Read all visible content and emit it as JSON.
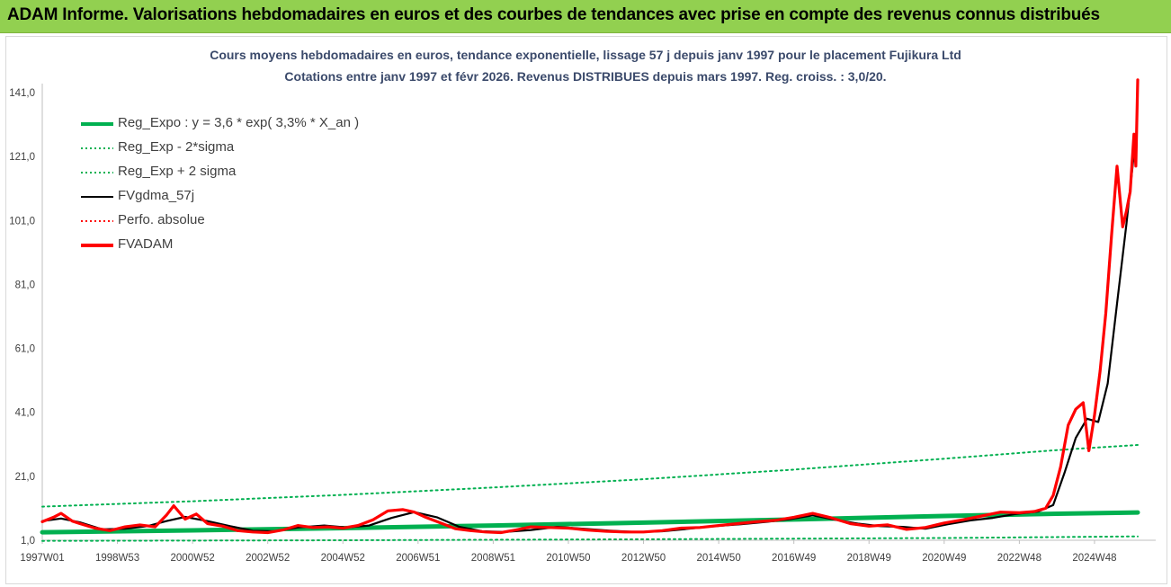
{
  "header": {
    "title": "ADAM Informe. Valorisations hebdomadaires en euros et des courbes de tendances avec prise en compte des revenus connus distribués"
  },
  "chart_data": {
    "type": "line",
    "title": "Cours moyens hebdomadaires en euros, tendance exponentielle, lissage 57 j depuis janv 1997 pour le placement Fujikura Ltd",
    "subtitle": "Cotations entre janv 1997 et févr 2026. Revenus DISTRIBUES depuis mars 1997. Reg. croiss. : 3,0/20.",
    "xlabel": "",
    "ylabel": "",
    "x_ticks": [
      "1997W01",
      "1998W53",
      "2000W52",
      "2002W52",
      "2004W52",
      "2006W51",
      "2008W51",
      "2010W50",
      "2012W50",
      "2014W50",
      "2016W49",
      "2018W49",
      "2020W49",
      "2022W48",
      "2024W48"
    ],
    "y_ticks": [
      "1,0",
      "21,0",
      "41,0",
      "61,0",
      "81,0",
      "101,0",
      "121,0",
      "141,0"
    ],
    "ylim": [
      1,
      141
    ],
    "xlim": [
      1997.0,
      2026.15
    ],
    "grid": false,
    "legend_position": "top-left",
    "colors": {
      "reg_expo": "#00b050",
      "reg_sigma": "#00b050",
      "fvgdma": "#000000",
      "perfo": "#ff0000",
      "fvadam": "#ff0000"
    },
    "legend": [
      {
        "key": "reg_expo",
        "label": "Reg_Expo : y = 3,6 * exp( 3,3% *  X_an )",
        "style": "thick-solid"
      },
      {
        "key": "reg_minus",
        "label": "Reg_Exp - 2*sigma",
        "style": "dotted"
      },
      {
        "key": "reg_plus",
        "label": "Reg_Exp + 2 sigma",
        "style": "dotted"
      },
      {
        "key": "fvgdma",
        "label": "FVgdma_57j",
        "style": "solid"
      },
      {
        "key": "perfo",
        "label": "Perfo. absolue",
        "style": "dotted"
      },
      {
        "key": "fvadam",
        "label": "FVADAM",
        "style": "thick-solid"
      }
    ],
    "series": [
      {
        "name": "Reg_Expo : y = 3,6 * exp( 3,3% *  X_an )",
        "x": [
          1997.0,
          2001.0,
          2005.0,
          2009.0,
          2013.0,
          2017.0,
          2021.0,
          2024.0,
          2026.15
        ],
        "values": [
          3.5,
          4.1,
          4.8,
          5.6,
          6.5,
          7.5,
          8.6,
          9.3,
          9.7
        ]
      },
      {
        "name": "Reg_Exp - 2*sigma",
        "x": [
          1997.0,
          2005.0,
          2013.0,
          2021.0,
          2026.15
        ],
        "values": [
          0.8,
          1.0,
          1.3,
          1.7,
          2.2
        ]
      },
      {
        "name": "Reg_Exp + 2 sigma",
        "x": [
          1997.0,
          2001.0,
          2005.0,
          2009.0,
          2013.0,
          2017.0,
          2021.0,
          2024.0,
          2026.15
        ],
        "values": [
          11.5,
          13.2,
          15.2,
          17.5,
          20.1,
          23.1,
          26.5,
          29.2,
          30.8
        ]
      },
      {
        "name": "FVgdma_57j",
        "x": [
          1997.0,
          1997.5,
          1998.0,
          1998.6,
          1999.2,
          1999.8,
          2000.3,
          2000.8,
          2001.4,
          2002.0,
          2002.6,
          2003.2,
          2003.8,
          2004.5,
          2005.1,
          2005.7,
          2006.3,
          2006.9,
          2007.5,
          2008.1,
          2008.7,
          2009.3,
          2010.0,
          2010.7,
          2011.4,
          2012.1,
          2012.8,
          2013.5,
          2014.2,
          2014.9,
          2015.6,
          2016.3,
          2016.9,
          2017.5,
          2018.1,
          2018.7,
          2019.3,
          2019.9,
          2020.5,
          2021.1,
          2021.7,
          2022.3,
          2022.9,
          2023.5,
          2023.9,
          2024.2,
          2024.5,
          2024.8,
          2025.1,
          2025.35,
          2025.6,
          2025.85,
          2026.05
        ],
        "values": [
          7.0,
          7.8,
          6.6,
          4.4,
          4.6,
          5.4,
          7.0,
          8.3,
          7.0,
          5.4,
          4.0,
          3.8,
          5.0,
          5.6,
          5.0,
          5.6,
          8.0,
          9.8,
          8.2,
          5.2,
          3.8,
          3.6,
          4.2,
          5.2,
          4.6,
          4.0,
          3.6,
          3.8,
          4.6,
          5.4,
          6.0,
          6.8,
          7.6,
          8.8,
          7.4,
          6.2,
          5.4,
          5.2,
          4.6,
          6.0,
          7.2,
          8.0,
          9.2,
          10.0,
          12.0,
          22.0,
          33.0,
          39.0,
          38.0,
          50.0,
          75.0,
          100.0,
          122.0
        ]
      },
      {
        "name": "FVADAM",
        "x": [
          1997.0,
          1997.3,
          1997.5,
          1997.8,
          1998.0,
          1998.4,
          1998.8,
          1999.2,
          1999.6,
          2000.0,
          2000.3,
          2000.5,
          2000.8,
          2001.1,
          2001.4,
          2001.8,
          2002.2,
          2002.6,
          2003.0,
          2003.4,
          2003.8,
          2004.2,
          2004.6,
          2005.0,
          2005.4,
          2005.8,
          2006.2,
          2006.6,
          2006.9,
          2007.2,
          2007.6,
          2008.0,
          2008.4,
          2008.8,
          2009.2,
          2009.6,
          2010.0,
          2010.5,
          2011.0,
          2011.5,
          2012.0,
          2012.5,
          2013.0,
          2013.5,
          2014.0,
          2014.5,
          2015.0,
          2015.5,
          2016.0,
          2016.5,
          2017.0,
          2017.5,
          2018.0,
          2018.5,
          2019.0,
          2019.5,
          2020.0,
          2020.5,
          2021.0,
          2021.5,
          2022.0,
          2022.5,
          2023.0,
          2023.4,
          2023.7,
          2023.9,
          2024.1,
          2024.3,
          2024.5,
          2024.7,
          2024.85,
          2025.0,
          2025.15,
          2025.3,
          2025.45,
          2025.6,
          2025.75,
          2025.85,
          2025.95,
          2026.05,
          2026.1,
          2026.15
        ],
        "values": [
          6.8,
          8.2,
          9.4,
          7.0,
          6.2,
          4.8,
          4.0,
          5.2,
          5.8,
          5.2,
          8.8,
          11.8,
          7.6,
          9.2,
          6.2,
          5.4,
          4.0,
          3.6,
          3.4,
          4.2,
          5.6,
          5.0,
          5.2,
          4.8,
          5.6,
          7.4,
          10.2,
          10.6,
          9.8,
          8.2,
          6.4,
          4.6,
          4.0,
          3.6,
          3.4,
          4.2,
          5.2,
          5.0,
          4.8,
          4.2,
          3.8,
          3.6,
          3.6,
          4.0,
          4.8,
          5.0,
          5.6,
          6.2,
          6.8,
          7.2,
          8.2,
          9.4,
          8.0,
          6.2,
          5.4,
          5.8,
          4.4,
          5.0,
          6.4,
          7.4,
          8.6,
          9.8,
          9.6,
          10.0,
          11.0,
          15.0,
          24.0,
          37.0,
          42.0,
          44.0,
          29.0,
          40.0,
          54.0,
          72.0,
          96.0,
          118.0,
          99.0,
          104.0,
          110.0,
          128.0,
          118.0,
          145.0
        ]
      }
    ]
  }
}
